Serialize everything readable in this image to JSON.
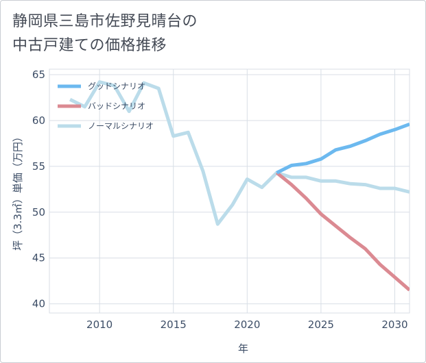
{
  "title": {
    "line1": "静岡県三島市佐野見晴台の",
    "line2": "中古戸建ての価格推移"
  },
  "colors": {
    "good": "#6cb9ef",
    "bad": "#db8a92",
    "normal": "#bbdcea",
    "grid": "#d8dee6",
    "axis_text": "#3c4d66"
  },
  "chart_data": {
    "type": "line",
    "title": "静岡県三島市佐野見晴台の中古戸建ての価格推移",
    "xlabel": "年",
    "ylabel": "坪（3.3㎡）単価（万円）",
    "xlim": [
      2006.6,
      2031
    ],
    "ylim": [
      39,
      65.6
    ],
    "xticks": [
      2010,
      2015,
      2020,
      2025,
      2030
    ],
    "yticks": [
      40,
      45,
      50,
      55,
      60,
      65
    ],
    "legend_position": "top-left",
    "series": [
      {
        "name": "グッドシナリオ",
        "key": "good",
        "x": [
          2022,
          2023,
          2024,
          2025,
          2026,
          2027,
          2028,
          2029,
          2030,
          2031
        ],
        "y": [
          54.3,
          55.1,
          55.3,
          55.8,
          56.8,
          57.2,
          57.8,
          58.5,
          59.0,
          59.6
        ]
      },
      {
        "name": "バッドシナリオ",
        "key": "bad",
        "x": [
          2022,
          2023,
          2024,
          2025,
          2026,
          2027,
          2028,
          2029,
          2030,
          2031
        ],
        "y": [
          54.3,
          53.0,
          51.5,
          49.8,
          48.5,
          47.2,
          46.0,
          44.3,
          42.9,
          41.5
        ]
      },
      {
        "name": "ノーマルシナリオ",
        "key": "normal",
        "x": [
          2008,
          2009,
          2010,
          2011,
          2012,
          2013,
          2014,
          2015,
          2016,
          2017,
          2018,
          2019,
          2020,
          2021,
          2022,
          2023,
          2024,
          2025,
          2026,
          2027,
          2028,
          2029,
          2030,
          2031
        ],
        "y": [
          62.3,
          61.5,
          64.2,
          63.8,
          61.0,
          64.1,
          63.5,
          58.3,
          58.7,
          54.5,
          48.7,
          50.8,
          53.6,
          52.7,
          54.3,
          53.8,
          53.8,
          53.4,
          53.4,
          53.1,
          53.0,
          52.6,
          52.6,
          52.2
        ]
      }
    ]
  }
}
